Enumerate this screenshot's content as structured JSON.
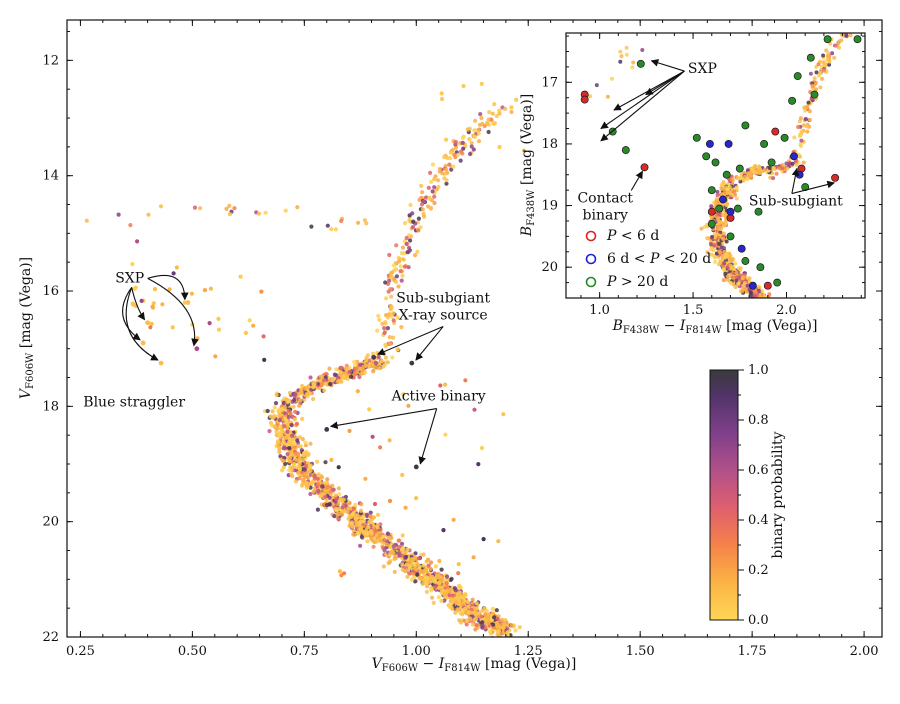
{
  "chart_data": [
    {
      "type": "scatter",
      "role": "main-cmd",
      "xlabel": "V_F606W − I_F814W [mag (Vega)]",
      "xlabel_parts": {
        "a": "V",
        "a_sub": "F606W",
        "op": " − ",
        "b": "I",
        "b_sub": "F814W",
        "unit": " [mag (Vega)]"
      },
      "ylabel_parts": {
        "a": "V",
        "a_sub": "F606W",
        "unit": " [mag (Vega)]"
      },
      "xlim": [
        0.22,
        2.04
      ],
      "ylim": [
        22.0,
        11.3
      ],
      "y_inverted": true,
      "x_ticks": [
        0.25,
        0.5,
        0.75,
        1.0,
        1.25,
        1.5,
        1.75,
        2.0
      ],
      "x_tick_labels": [
        "0.25",
        "0.50",
        "0.75",
        "1.00",
        "1.25",
        "1.50",
        "1.75",
        "2.00"
      ],
      "y_ticks": [
        12,
        14,
        16,
        18,
        20,
        22
      ],
      "y_tick_labels": [
        "12",
        "14",
        "16",
        "18",
        "20",
        "22"
      ],
      "sequences": {
        "main_sequence": [
          [
            0.71,
            17.9
          ],
          [
            0.7,
            18.3
          ],
          [
            0.72,
            18.8
          ],
          [
            0.77,
            19.3
          ],
          [
            0.84,
            19.8
          ],
          [
            0.92,
            20.3
          ],
          [
            1.0,
            20.8
          ],
          [
            1.07,
            21.2
          ],
          [
            1.13,
            21.6
          ],
          [
            1.2,
            21.9
          ]
        ],
        "subgiant_branch": [
          [
            0.72,
            17.9
          ],
          [
            0.78,
            17.6
          ],
          [
            0.86,
            17.4
          ],
          [
            0.92,
            17.2
          ]
        ],
        "red_giant_branch": [
          [
            0.92,
            17.2
          ],
          [
            0.94,
            16.6
          ],
          [
            0.95,
            15.9
          ],
          [
            0.97,
            15.3
          ],
          [
            1.0,
            14.7
          ],
          [
            1.05,
            14.0
          ],
          [
            1.12,
            13.3
          ],
          [
            1.2,
            12.8
          ]
        ],
        "horizontal_branch": [
          [
            0.25,
            15.1
          ],
          [
            0.3,
            14.9
          ],
          [
            0.38,
            14.7
          ],
          [
            0.48,
            14.55
          ],
          [
            0.58,
            14.6
          ],
          [
            0.66,
            14.65
          ],
          [
            0.75,
            14.7
          ],
          [
            0.85,
            14.8
          ],
          [
            0.95,
            14.95
          ]
        ]
      },
      "highlighted_points": [
        {
          "x": 0.49,
          "y": 16.2,
          "p": 0.1
        },
        {
          "x": 0.51,
          "y": 17.0,
          "p": 0.6
        },
        {
          "x": 0.39,
          "y": 16.9,
          "p": 0.1
        },
        {
          "x": 0.43,
          "y": 17.25,
          "p": 0.1
        },
        {
          "x": 0.4,
          "y": 16.55,
          "p": 0.1
        },
        {
          "x": 0.905,
          "y": 17.15,
          "p": 0.9
        },
        {
          "x": 0.99,
          "y": 17.25,
          "p": 0.95
        },
        {
          "x": 0.8,
          "y": 18.4,
          "p": 0.95
        },
        {
          "x": 1.0,
          "y": 19.05,
          "p": 0.95
        }
      ],
      "annotations": [
        {
          "id": "sxp",
          "text": "SXP",
          "text_pos": [
            0.36,
            15.85
          ],
          "targets": [
            [
              0.49,
              16.2
            ],
            [
              0.51,
              17.0
            ],
            [
              0.39,
              16.9
            ],
            [
              0.43,
              17.25
            ],
            [
              0.4,
              16.55
            ]
          ]
        },
        {
          "id": "blue-straggler",
          "text": "Blue straggler",
          "text_pos": [
            0.37,
            18.0
          ]
        },
        {
          "id": "sub-subgiant",
          "text": "Sub-subgiant",
          "text2": "X-ray source",
          "text_pos": [
            1.06,
            16.2
          ],
          "targets": [
            [
              0.905,
              17.15
            ],
            [
              0.99,
              17.25
            ]
          ]
        },
        {
          "id": "active-binary",
          "text": "Active binary",
          "text_pos": [
            1.05,
            17.9
          ],
          "targets": [
            [
              0.8,
              18.4
            ],
            [
              1.0,
              19.05
            ]
          ]
        }
      ],
      "colorbar": {
        "label": "binary probability",
        "range": [
          0.0,
          1.0
        ],
        "ticks": [
          0.0,
          0.2,
          0.4,
          0.6,
          0.8,
          1.0
        ],
        "tick_labels": [
          "0.0",
          "0.2",
          "0.4",
          "0.6",
          "0.8",
          "1.0"
        ],
        "colormap_stops": [
          "#ffd757",
          "#fbb345",
          "#f6824a",
          "#df5f6e",
          "#b0508a",
          "#7f3f8a",
          "#503468",
          "#3a3a3a"
        ]
      }
    },
    {
      "type": "scatter",
      "role": "inset-cmd",
      "xlabel_parts": {
        "a": "B",
        "a_sub": "F438W",
        "op": " − ",
        "b": "I",
        "b_sub": "F814W",
        "unit": " [mag (Vega)]"
      },
      "ylabel_parts": {
        "a": "B",
        "a_sub": "F438W",
        "unit": " [mag (Vega)]"
      },
      "xlim": [
        0.82,
        2.42
      ],
      "ylim": [
        20.5,
        16.2
      ],
      "y_inverted": true,
      "x_ticks": [
        1.0,
        1.5,
        2.0
      ],
      "x_tick_labels": [
        "1.0",
        "1.5",
        "2.0"
      ],
      "y_ticks": [
        17,
        18,
        19,
        20
      ],
      "y_tick_labels": [
        "17",
        "18",
        "19",
        "20"
      ],
      "sequences": {
        "main_sequence": [
          [
            1.72,
            18.6
          ],
          [
            1.65,
            19.0
          ],
          [
            1.62,
            19.4
          ],
          [
            1.65,
            19.8
          ],
          [
            1.72,
            20.1
          ],
          [
            1.82,
            20.4
          ],
          [
            1.9,
            20.6
          ]
        ],
        "subgiant_branch": [
          [
            1.72,
            18.6
          ],
          [
            1.82,
            18.45
          ],
          [
            1.95,
            18.4
          ],
          [
            2.05,
            18.3
          ]
        ],
        "red_giant_branch": [
          [
            2.05,
            18.3
          ],
          [
            2.08,
            17.8
          ],
          [
            2.12,
            17.3
          ],
          [
            2.18,
            16.8
          ],
          [
            2.25,
            16.4
          ],
          [
            2.32,
            16.2
          ]
        ],
        "horizontal_branch": [
          [
            0.95,
            17.3
          ],
          [
            1.05,
            16.9
          ],
          [
            1.15,
            16.6
          ],
          [
            1.25,
            16.5
          ]
        ]
      },
      "variables": [
        {
          "x": 0.92,
          "y": 17.2,
          "cls": "short"
        },
        {
          "x": 0.92,
          "y": 17.28,
          "cls": "short"
        },
        {
          "x": 1.24,
          "y": 18.38,
          "cls": "short"
        },
        {
          "x": 1.6,
          "y": 19.1,
          "cls": "short"
        },
        {
          "x": 1.7,
          "y": 19.2,
          "cls": "short"
        },
        {
          "x": 1.9,
          "y": 20.3,
          "cls": "short"
        },
        {
          "x": 2.08,
          "y": 18.4,
          "cls": "short"
        },
        {
          "x": 2.26,
          "y": 18.55,
          "cls": "short"
        },
        {
          "x": 1.94,
          "y": 17.8,
          "cls": "short"
        },
        {
          "x": 1.59,
          "y": 18.0,
          "cls": "mid"
        },
        {
          "x": 1.69,
          "y": 18.0,
          "cls": "mid"
        },
        {
          "x": 1.66,
          "y": 18.9,
          "cls": "mid"
        },
        {
          "x": 1.7,
          "y": 19.1,
          "cls": "mid"
        },
        {
          "x": 1.76,
          "y": 19.7,
          "cls": "mid"
        },
        {
          "x": 1.82,
          "y": 20.3,
          "cls": "mid"
        },
        {
          "x": 2.04,
          "y": 18.2,
          "cls": "mid"
        },
        {
          "x": 2.07,
          "y": 18.5,
          "cls": "mid"
        },
        {
          "x": 1.22,
          "y": 16.7,
          "cls": "long"
        },
        {
          "x": 1.07,
          "y": 17.8,
          "cls": "long"
        },
        {
          "x": 1.14,
          "y": 18.1,
          "cls": "long"
        },
        {
          "x": 1.52,
          "y": 17.9,
          "cls": "long"
        },
        {
          "x": 1.57,
          "y": 18.2,
          "cls": "long"
        },
        {
          "x": 1.62,
          "y": 18.3,
          "cls": "long"
        },
        {
          "x": 1.68,
          "y": 18.5,
          "cls": "long"
        },
        {
          "x": 1.75,
          "y": 18.4,
          "cls": "long"
        },
        {
          "x": 1.6,
          "y": 18.75,
          "cls": "long"
        },
        {
          "x": 1.64,
          "y": 19.05,
          "cls": "long"
        },
        {
          "x": 1.74,
          "y": 19.05,
          "cls": "long"
        },
        {
          "x": 1.6,
          "y": 19.3,
          "cls": "long"
        },
        {
          "x": 1.7,
          "y": 19.5,
          "cls": "long"
        },
        {
          "x": 1.78,
          "y": 19.9,
          "cls": "long"
        },
        {
          "x": 1.86,
          "y": 20.0,
          "cls": "long"
        },
        {
          "x": 1.78,
          "y": 17.7,
          "cls": "long"
        },
        {
          "x": 1.88,
          "y": 18.0,
          "cls": "long"
        },
        {
          "x": 1.92,
          "y": 18.3,
          "cls": "long"
        },
        {
          "x": 1.99,
          "y": 17.9,
          "cls": "long"
        },
        {
          "x": 2.03,
          "y": 17.3,
          "cls": "long"
        },
        {
          "x": 2.06,
          "y": 16.9,
          "cls": "long"
        },
        {
          "x": 2.13,
          "y": 16.6,
          "cls": "long"
        },
        {
          "x": 2.22,
          "y": 16.3,
          "cls": "long"
        },
        {
          "x": 2.38,
          "y": 16.3,
          "cls": "long"
        },
        {
          "x": 2.15,
          "y": 17.2,
          "cls": "long"
        },
        {
          "x": 2.1,
          "y": 18.7,
          "cls": "long"
        },
        {
          "x": 1.85,
          "y": 19.1,
          "cls": "long"
        },
        {
          "x": 1.95,
          "y": 20.25,
          "cls": "long"
        }
      ],
      "annotations": [
        {
          "id": "inset-sxp",
          "text": "SXP",
          "text_pos": [
            1.55,
            16.85
          ],
          "targets": [
            [
              1.25,
              16.65
            ],
            [
              1.22,
              17.2
            ],
            [
              1.05,
              17.45
            ],
            [
              0.98,
              17.75
            ],
            [
              0.98,
              17.95
            ]
          ]
        },
        {
          "id": "contact-binary",
          "text": "Contact",
          "text2": "binary",
          "text_pos": [
            1.03,
            18.95
          ],
          "targets": [
            [
              1.24,
              18.38
            ]
          ]
        },
        {
          "id": "inset-sub-subgiant",
          "text": "Sub-subgiant",
          "text_pos": [
            2.05,
            19.0
          ],
          "targets": [
            [
              2.05,
              18.32
            ],
            [
              2.25,
              18.55
            ]
          ]
        }
      ],
      "legend": [
        {
          "cls": "short",
          "label": "P < 6 d",
          "parts": [
            "P",
            " < 6 d"
          ]
        },
        {
          "cls": "mid",
          "label": "6 d < P < 20 d",
          "parts": [
            "6 d < ",
            "P",
            " < 20 d"
          ]
        },
        {
          "cls": "long",
          "label": "P > 20 d",
          "parts": [
            "P",
            " > 20 d"
          ]
        }
      ],
      "legend_colors": {
        "short": "#e0201f",
        "mid": "#1e1ed6",
        "long": "#1f8a1f"
      },
      "legend_placement": "lower-left"
    }
  ]
}
